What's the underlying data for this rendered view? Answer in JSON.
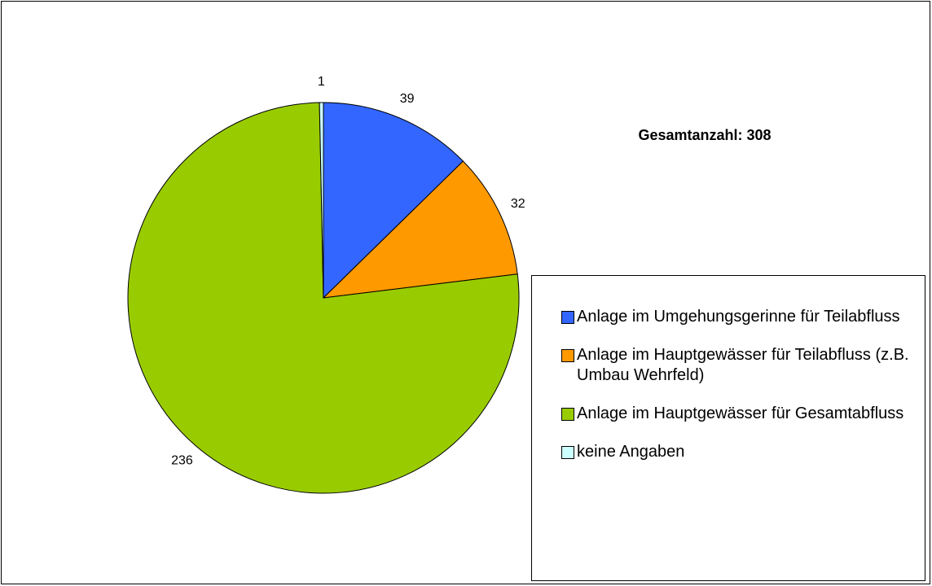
{
  "chart_data": {
    "type": "pie",
    "annotation": "Gesamtanzahl: 308",
    "categories": [
      "Anlage im Umgehungsgerinne für Teilabfluss",
      "Anlage im Hauptgewässer für Teilabfluss (z.B. Umbau Wehrfeld)",
      "Anlage im Hauptgewässer für Gesamtabfluss",
      "keine Angaben"
    ],
    "values": [
      39,
      32,
      236,
      1
    ],
    "colors": [
      "#3366ff",
      "#ff9900",
      "#99cc00",
      "#ccffff"
    ],
    "legend": "right"
  }
}
